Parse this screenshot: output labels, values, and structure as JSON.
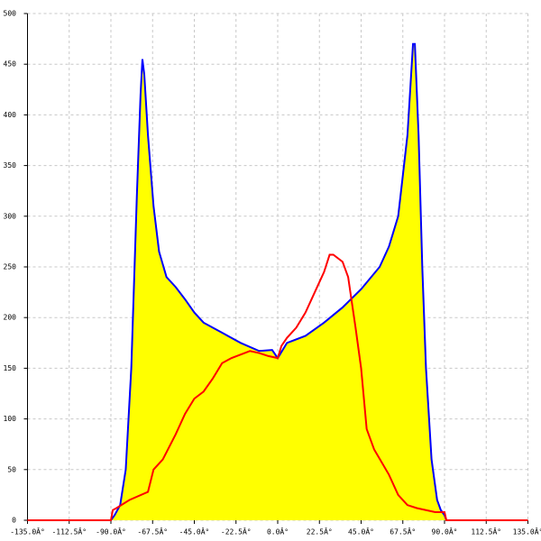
{
  "chart_data": {
    "type": "area-line",
    "xlim": [
      -135,
      135
    ],
    "ylim": [
      0,
      500
    ],
    "grid": true,
    "xticks": [
      {
        "value": -135,
        "label": "-135.0Â°"
      },
      {
        "value": -112.5,
        "label": "-112.5Â°"
      },
      {
        "value": -90,
        "label": "-90.0Â°"
      },
      {
        "value": -67.5,
        "label": "-67.5Â°"
      },
      {
        "value": -45,
        "label": "-45.0Â°"
      },
      {
        "value": -22.5,
        "label": "-22.5Â°"
      },
      {
        "value": 0,
        "label": "0.0Â°"
      },
      {
        "value": 22.5,
        "label": "22.5Â°"
      },
      {
        "value": 45,
        "label": "45.0Â°"
      },
      {
        "value": 67.5,
        "label": "67.5Â°"
      },
      {
        "value": 90,
        "label": "90.0Â°"
      },
      {
        "value": 112.5,
        "label": "112.5Â°"
      },
      {
        "value": 135,
        "label": "135.0Â°"
      }
    ],
    "yticks": [
      0,
      50,
      100,
      150,
      200,
      250,
      300,
      350,
      400,
      450,
      500
    ],
    "series": [
      {
        "color": "#0000ff",
        "fill": "#ffff00",
        "x": [
          -135,
          -90,
          -88,
          -85,
          -82,
          -79,
          -76,
          -74,
          -73,
          -72,
          -70,
          -67,
          -64,
          -60,
          -55,
          -50,
          -45,
          -40,
          -30,
          -20,
          -10,
          -3,
          0,
          5,
          15,
          25,
          35,
          45,
          55,
          60,
          65,
          70,
          73,
          74,
          76,
          78,
          80,
          83,
          86,
          88,
          90,
          91,
          135
        ],
        "values": [
          0,
          0,
          5,
          15,
          50,
          150,
          320,
          420,
          455,
          440,
          380,
          310,
          265,
          240,
          230,
          218,
          205,
          195,
          185,
          175,
          167,
          168,
          160,
          175,
          182,
          195,
          210,
          228,
          250,
          270,
          300,
          380,
          470,
          470,
          380,
          250,
          150,
          60,
          20,
          10,
          5,
          0,
          0
        ]
      },
      {
        "color": "#ff0000",
        "x": [
          -135,
          -90,
          -89,
          -87,
          -80,
          -70,
          -67,
          -62,
          -55,
          -50,
          -45,
          -40,
          -35,
          -30,
          -25,
          -15,
          -10,
          -5,
          0,
          2,
          5,
          10,
          15,
          20,
          25,
          28,
          30,
          35,
          38,
          42,
          45,
          48,
          52,
          60,
          65,
          70,
          75,
          80,
          85,
          90,
          91,
          135
        ],
        "values": [
          0,
          0,
          10,
          12,
          20,
          28,
          50,
          60,
          85,
          105,
          120,
          127,
          140,
          155,
          160,
          167,
          165,
          162,
          160,
          172,
          180,
          190,
          205,
          225,
          245,
          262,
          262,
          255,
          240,
          190,
          150,
          90,
          70,
          45,
          25,
          15,
          12,
          10,
          8,
          8,
          0,
          0
        ]
      }
    ]
  }
}
